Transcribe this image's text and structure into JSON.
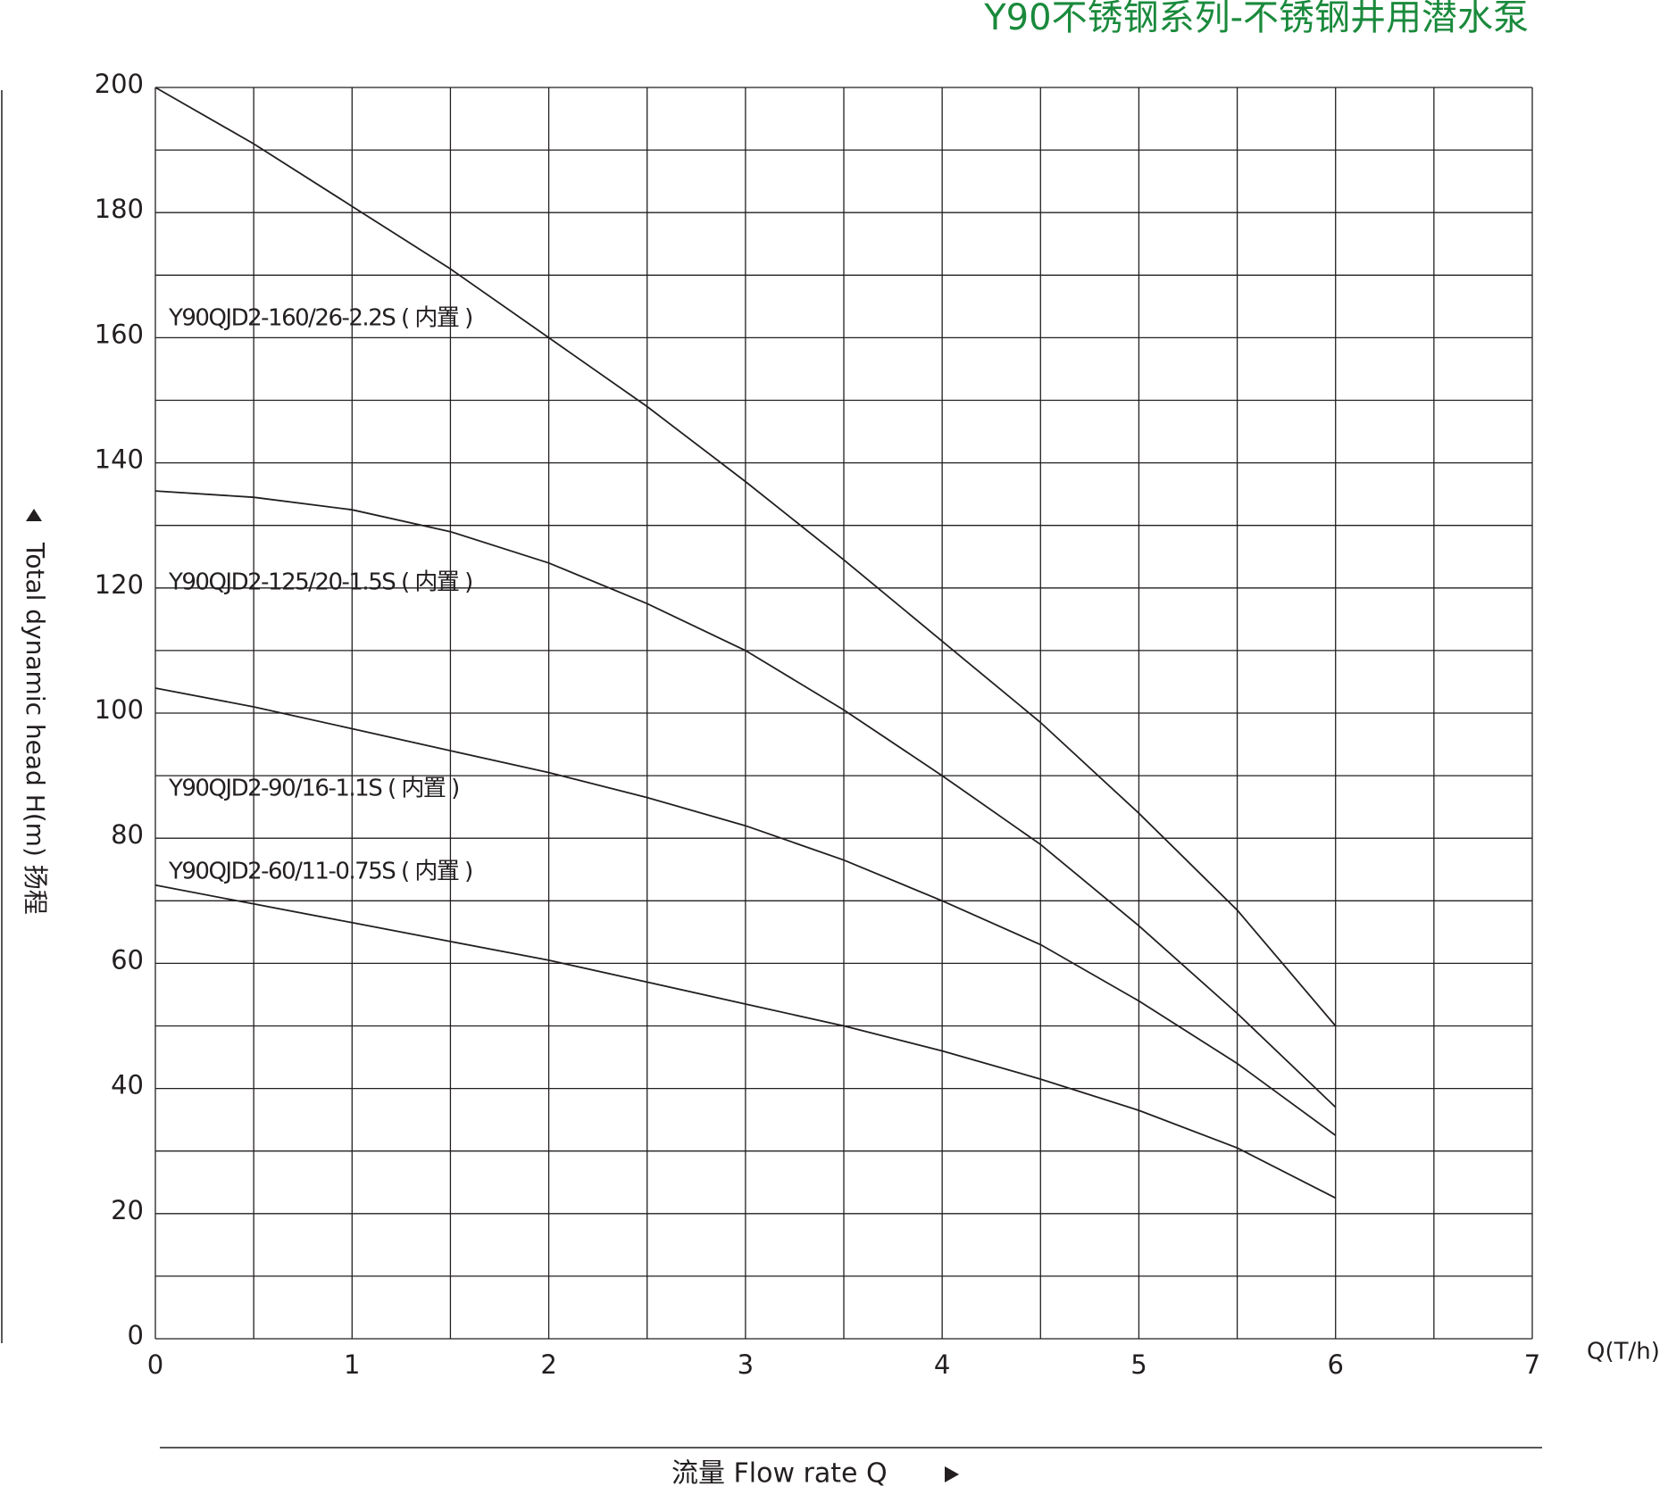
{
  "chart_data": {
    "type": "line",
    "title": "Y90不锈钢系列-不锈钢井用潜水泵",
    "y_label": "Total dynamic head H(m) 扬程",
    "x_label": "流量  Flow rate Q",
    "x_unit_label": "Q(T/h)",
    "x": [
      0,
      0.5,
      1,
      1.5,
      2,
      2.5,
      3,
      3.5,
      4,
      4.5,
      5,
      5.5,
      6
    ],
    "series": [
      {
        "name": "Y90QJD2-160/26-2.2S ( 内置 )",
        "color": "#231f20",
        "values": [
          200,
          191,
          181,
          171,
          160,
          149,
          137,
          124.5,
          111.5,
          98.5,
          84,
          68.5,
          50
        ]
      },
      {
        "name": "Y90QJD2-125/20-1.5S ( 内置 )",
        "color": "#231f20",
        "values": [
          135.5,
          134.5,
          132.5,
          129,
          124,
          117.5,
          110,
          100.5,
          90,
          79,
          66,
          52,
          37
        ]
      },
      {
        "name": "Y90QJD2-90/16-1.1S ( 内置 )",
        "color": "#231f20",
        "values": [
          104,
          101,
          97.5,
          94,
          90.5,
          86.5,
          82,
          76.5,
          70,
          63,
          54,
          44,
          32.5
        ]
      },
      {
        "name": "Y90QJD2-60/11-0.75S ( 内置 )",
        "color": "#231f20",
        "values": [
          72.5,
          69.5,
          66.5,
          63.5,
          60.5,
          57,
          53.5,
          50,
          46,
          41.5,
          36.5,
          30.5,
          22.5
        ]
      }
    ],
    "xlim": [
      0,
      7
    ],
    "xticks": [
      0,
      1,
      2,
      3,
      4,
      5,
      6,
      7
    ],
    "ylim": [
      0,
      200
    ],
    "yticks": [
      0,
      20,
      40,
      60,
      80,
      100,
      120,
      140,
      160,
      180,
      200
    ],
    "grid": true
  }
}
